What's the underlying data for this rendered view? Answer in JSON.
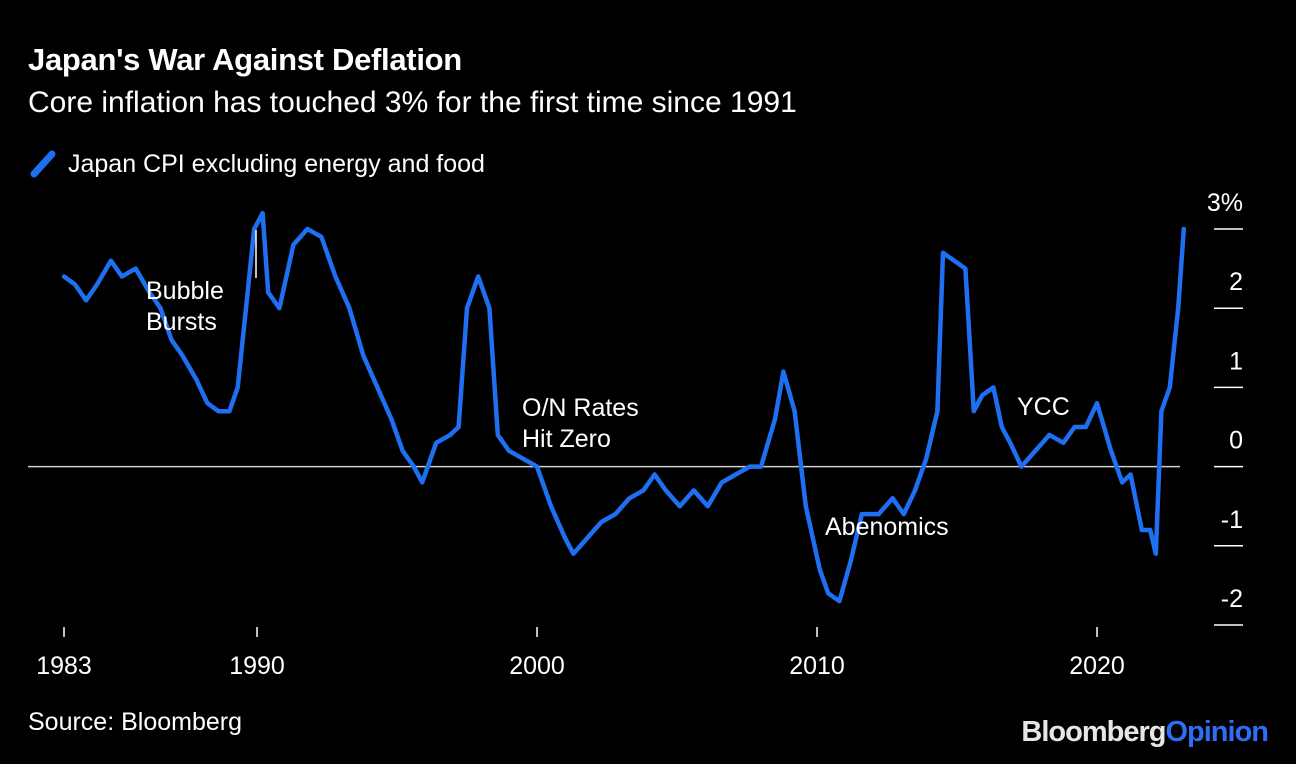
{
  "header": {
    "title": "Japan's War Against Deflation",
    "subtitle": "Core inflation has touched 3% for the first time since 1991"
  },
  "legend": {
    "label": "Japan CPI excluding energy and food"
  },
  "footer": {
    "source": "Source: Bloomberg",
    "brand_part1": "Bloomberg",
    "brand_part2": "Opinion"
  },
  "colors": {
    "background": "#000000",
    "line": "#1f6ff2",
    "text": "#ffffff",
    "zero_line": "#cfcfcf"
  },
  "chart_data": {
    "type": "line",
    "title": "Japan's War Against Deflation",
    "subtitle": "Core inflation has touched 3% for the first time since 1991",
    "xlabel": "",
    "ylabel": "",
    "xlim": [
      1983,
      2023.2
    ],
    "ylim": [
      -2,
      3
    ],
    "x_ticks": [
      1983,
      1990,
      2000,
      2010,
      2020
    ],
    "x_tick_labels": [
      "1983",
      "1990",
      "2000",
      "2010",
      "2020"
    ],
    "y_ticks": [
      3,
      2,
      1,
      0,
      -1,
      -2
    ],
    "y_tick_labels": [
      "3%",
      "2",
      "1",
      "0",
      "-1",
      "-2"
    ],
    "y_axis_side": "right",
    "grid": false,
    "legend_position": "top-left",
    "series": [
      {
        "name": "Japan CPI excluding energy and food",
        "x": [
          1983.0,
          1983.4,
          1983.8,
          1984.2,
          1984.7,
          1985.1,
          1985.6,
          1986.1,
          1986.5,
          1986.9,
          1987.3,
          1987.8,
          1988.2,
          1988.6,
          1989.0,
          1989.3,
          1989.6,
          1989.9,
          1990.2,
          1990.4,
          1990.8,
          1991.3,
          1991.8,
          1992.3,
          1992.8,
          1993.3,
          1993.8,
          1994.3,
          1994.8,
          1995.2,
          1995.6,
          1995.9,
          1996.4,
          1996.9,
          1997.2,
          1997.5,
          1997.9,
          1998.3,
          1998.6,
          1999.0,
          1999.5,
          2000.0,
          2000.5,
          2001.0,
          2001.3,
          2001.8,
          2002.3,
          2002.8,
          2003.3,
          2003.8,
          2004.2,
          2004.6,
          2005.1,
          2005.6,
          2006.1,
          2006.6,
          2007.1,
          2007.6,
          2008.0,
          2008.5,
          2008.8,
          2009.2,
          2009.6,
          2010.1,
          2010.4,
          2010.8,
          2011.2,
          2011.6,
          2012.2,
          2012.7,
          2013.1,
          2013.5,
          2013.9,
          2014.3,
          2014.5,
          2014.9,
          2015.3,
          2015.6,
          2015.9,
          2016.3,
          2016.6,
          2016.9,
          2017.3,
          2017.8,
          2018.3,
          2018.8,
          2019.2,
          2019.6,
          2020.0,
          2020.5,
          2020.9,
          2021.2,
          2021.6,
          2021.9,
          2022.1,
          2022.3,
          2022.6,
          2022.9,
          2023.1
        ],
        "values": [
          2.4,
          2.3,
          2.1,
          2.3,
          2.6,
          2.4,
          2.5,
          2.2,
          2.0,
          1.6,
          1.4,
          1.1,
          0.8,
          0.7,
          0.7,
          1.0,
          2.0,
          3.0,
          3.2,
          2.2,
          2.0,
          2.8,
          3.0,
          2.9,
          2.4,
          2.0,
          1.4,
          1.0,
          0.6,
          0.2,
          0.0,
          -0.2,
          0.3,
          0.4,
          0.5,
          2.0,
          2.4,
          2.0,
          0.4,
          0.2,
          0.1,
          0.0,
          -0.5,
          -0.9,
          -1.1,
          -0.9,
          -0.7,
          -0.6,
          -0.4,
          -0.3,
          -0.1,
          -0.3,
          -0.5,
          -0.3,
          -0.5,
          -0.2,
          -0.1,
          0.0,
          0.0,
          0.6,
          1.2,
          0.7,
          -0.5,
          -1.3,
          -1.6,
          -1.7,
          -1.2,
          -0.6,
          -0.6,
          -0.4,
          -0.6,
          -0.3,
          0.1,
          0.7,
          2.7,
          2.6,
          2.5,
          0.7,
          0.9,
          1.0,
          0.5,
          0.3,
          0.0,
          0.2,
          0.4,
          0.3,
          0.5,
          0.5,
          0.8,
          0.2,
          -0.2,
          -0.1,
          -0.8,
          -0.8,
          -1.1,
          0.7,
          1.0,
          2.0,
          3.0
        ]
      }
    ],
    "annotations": [
      {
        "text_lines": [
          "Bubble",
          "Bursts"
        ],
        "x": 1990.0
      },
      {
        "text_lines": [
          "O/N Rates",
          "Hit Zero"
        ],
        "x": 1999.2
      },
      {
        "text_lines": [
          "Abenomics"
        ],
        "x": 2013.0
      },
      {
        "text_lines": [
          "YCC"
        ],
        "x": 2016.7
      }
    ]
  }
}
